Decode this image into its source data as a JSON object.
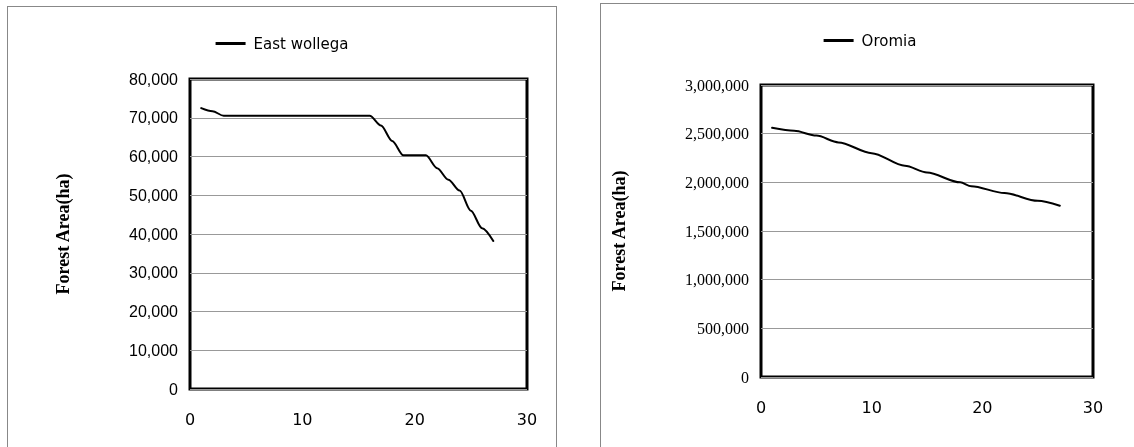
{
  "chart_data": [
    {
      "type": "line",
      "ylabel": "Forest Area(ha)",
      "xlim": [
        0,
        30
      ],
      "xticks": [
        0,
        10,
        20,
        30
      ],
      "ylim": [
        0,
        80000
      ],
      "yticks": [
        0,
        {
          "value": 10000,
          "label": "10,000"
        },
        {
          "value": 20000,
          "label": "20,000"
        },
        {
          "value": 30000,
          "label": "30,000"
        },
        {
          "value": 40000,
          "label": "40,000"
        },
        {
          "value": 50000,
          "label": "50,000"
        },
        {
          "value": 60000,
          "label": "60,000"
        },
        {
          "value": 70000,
          "label": "70,000"
        },
        {
          "value": 80000,
          "label": "80,000"
        }
      ],
      "grid": "y",
      "legend": "top",
      "marker": "none",
      "line_style": "solid",
      "x": [
        1,
        2,
        3,
        4,
        6,
        8,
        10,
        12,
        14,
        15,
        16,
        17,
        18,
        19,
        20,
        21,
        22,
        23,
        24,
        25,
        26,
        27
      ],
      "series": [
        {
          "name": "East wollega",
          "color": "#000000",
          "values": [
            72500,
            71700,
            70500,
            70500,
            70500,
            70500,
            70500,
            70500,
            70500,
            70500,
            70500,
            68000,
            64000,
            60300,
            60300,
            60300,
            57000,
            54000,
            51200,
            46000,
            41500,
            38200
          ]
        }
      ]
    },
    {
      "type": "line",
      "ylabel": "Forest Area(ha)",
      "xlim": [
        0,
        30
      ],
      "xticks": [
        0,
        10,
        20,
        30
      ],
      "ylim": [
        0,
        3000000
      ],
      "yticks": [
        0,
        {
          "value": 500000,
          "label": "500,000"
        },
        {
          "value": 1000000,
          "label": "1,000,000"
        },
        {
          "value": 1500000,
          "label": "1,500,000"
        },
        {
          "value": 2000000,
          "label": "2,000,000"
        },
        {
          "value": 2500000,
          "label": "2,500,000"
        },
        {
          "value": 3000000,
          "label": "3,000,000"
        }
      ],
      "grid": "y",
      "legend": "top",
      "marker": "none",
      "line_style": "solid",
      "x": [
        1,
        3,
        5,
        7,
        10,
        13,
        15,
        18,
        19,
        22,
        25,
        27
      ],
      "series": [
        {
          "name": "Oromia",
          "color": "#000000",
          "values": [
            2560000,
            2530000,
            2480000,
            2410000,
            2300000,
            2170000,
            2100000,
            2000000,
            1960000,
            1890000,
            1810000,
            1760000
          ]
        }
      ]
    }
  ]
}
